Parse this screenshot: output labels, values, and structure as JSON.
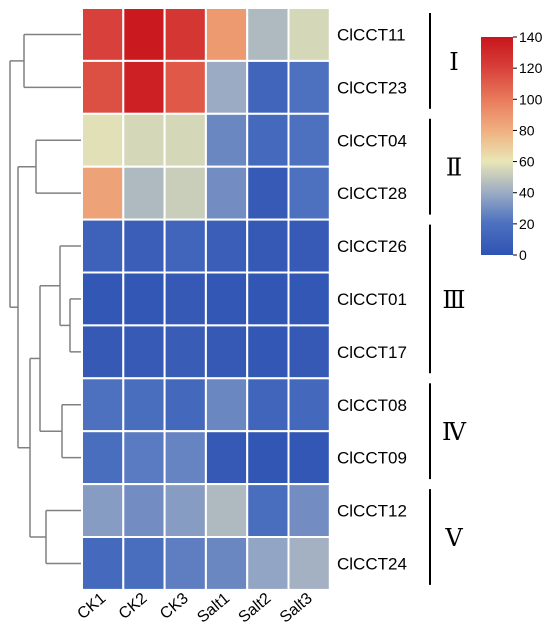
{
  "chart_data": {
    "type": "heatmap",
    "title": "",
    "xlabel": "",
    "ylabel": "",
    "columns": [
      "CK1",
      "CK2",
      "CK3",
      "Salt1",
      "Salt2",
      "Salt3"
    ],
    "rows": [
      "ClCCT11",
      "ClCCT23",
      "ClCCT04",
      "ClCCT28",
      "ClCCT26",
      "ClCCT01",
      "ClCCT17",
      "ClCCT08",
      "ClCCT09",
      "ClCCT12",
      "ClCCT24"
    ],
    "values": [
      [
        120,
        138,
        125,
        88,
        45,
        55
      ],
      [
        115,
        135,
        112,
        40,
        12,
        20
      ],
      [
        58,
        55,
        55,
        28,
        15,
        20
      ],
      [
        85,
        45,
        52,
        30,
        5,
        20
      ],
      [
        10,
        8,
        12,
        8,
        4,
        5
      ],
      [
        3,
        3,
        4,
        3,
        2,
        3
      ],
      [
        4,
        5,
        7,
        4,
        3,
        4
      ],
      [
        20,
        18,
        14,
        28,
        12,
        14
      ],
      [
        18,
        24,
        27,
        4,
        2,
        3
      ],
      [
        35,
        30,
        35,
        45,
        18,
        30
      ],
      [
        15,
        18,
        25,
        28,
        38,
        42
      ]
    ],
    "colorbar": {
      "min": 0,
      "max": 140,
      "ticks": [
        "0",
        "20",
        "40",
        "60",
        "80",
        "100",
        "120",
        "140"
      ]
    },
    "groups": [
      {
        "label": "Ⅰ",
        "rows": [
          0,
          1
        ]
      },
      {
        "label": "Ⅱ",
        "rows": [
          2,
          3
        ]
      },
      {
        "label": "Ⅲ",
        "rows": [
          4,
          5,
          6
        ]
      },
      {
        "label": "Ⅳ",
        "rows": [
          7,
          8
        ]
      },
      {
        "label": "Ⅴ",
        "rows": [
          9,
          10
        ]
      }
    ],
    "grid": true,
    "legend_position": "top-right",
    "dendrogram": "rows"
  },
  "colors": {
    "scale_low": "#2f53b3",
    "scale_mid": "#e9e6b6",
    "scale_high": "#d01f26",
    "cell_border": "#ffffff",
    "dendrogram_line": "#808080",
    "group_line": "#000000"
  }
}
